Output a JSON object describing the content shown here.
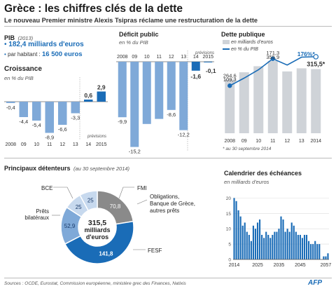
{
  "header": {
    "title": "Grèce : les chiffres clés de la dette",
    "subtitle": "Le nouveau Premier ministre Alexis Tsipras réclame une restructuration de la dette"
  },
  "pib": {
    "label": "PIB",
    "year": "(2013)",
    "total": "182,4 milliards d'euros",
    "per_capita_label": "par habitant :",
    "per_capita_value": "16 500 euros"
  },
  "croissance": {
    "title": "Croissance",
    "unit": "en % du PIB",
    "previsions": "prévisions"
  },
  "deficit": {
    "title": "Déficit public",
    "unit": "en % du PIB",
    "previsions": "prévisions"
  },
  "dette": {
    "title": "Dette publique",
    "legend_bar": "en milliards d'euros",
    "legend_line": "en % du PIB",
    "footnote": "* au 30 septembre 2014"
  },
  "detenteurs": {
    "title": "Principaux détenteurs",
    "date": "(au 30 septembre 2014)",
    "center_line1": "315,5",
    "center_line2": "milliards",
    "center_line3": "d'euros",
    "labels": {
      "bce": "BCE",
      "fmi": "FMI",
      "prets": [
        "Prêts",
        "bilatéraux"
      ],
      "oblig": [
        "Obligations,",
        "Banque de Grèce,",
        "autres prêts"
      ],
      "fesf": "FESF"
    }
  },
  "calendrier": {
    "title": "Calendrier des échéances",
    "unit": "en milliards d'euros"
  },
  "footer": {
    "source": "Sources : OCDE, Eurostat, Commission européenne, ministère grec des Finances, Natixis",
    "logo": "AFP"
  },
  "colors": {
    "dark_blue": "#1a6cb7",
    "light_blue": "#7fa9d8",
    "pale_blue": "#c7d9ee",
    "gray": "#9a9a9a",
    "light_gray": "#cfd3d8",
    "donut_gray": "#8a8a8a"
  },
  "chart_data": [
    {
      "id": "croissance",
      "type": "bar",
      "title": "Croissance",
      "ylabel": "en % du PIB",
      "categories": [
        "2008",
        "09",
        "10",
        "11",
        "12",
        "13",
        "14",
        "2015"
      ],
      "values": [
        -0.4,
        -4.4,
        -5.4,
        -8.9,
        -6.6,
        -3.3,
        0.6,
        2.9
      ],
      "value_labels": [
        "-0,4",
        "-4,4",
        "-5,4",
        "-8,9",
        "-6,6",
        "-3,3",
        "0,6",
        "2,9"
      ],
      "forecast_from": "14",
      "ylim": [
        -10,
        4
      ]
    },
    {
      "id": "deficit",
      "type": "bar",
      "title": "Déficit public",
      "ylabel": "en % du PIB",
      "categories": [
        "2008",
        "09",
        "10",
        "11",
        "12",
        "13",
        "14",
        "2015"
      ],
      "values": [
        -9.9,
        -15.2,
        -11.1,
        -10.2,
        -8.6,
        -12.2,
        -1.6,
        -0.1
      ],
      "value_labels": [
        "-9,9",
        "-15,2",
        "",
        "",
        "-8,6",
        "-12,2",
        "-1,6",
        "-0,1"
      ],
      "forecast_from": "14",
      "ylim": [
        -16,
        1
      ]
    },
    {
      "id": "dette",
      "type": "bar+line",
      "title": "Dette publique",
      "categories": [
        "2008",
        "09",
        "10",
        "11",
        "12",
        "13",
        "2014"
      ],
      "series": [
        {
          "name": "en milliards d'euros",
          "type": "bar",
          "values": [
            264.6,
            299.7,
            329.5,
            355.9,
            303.9,
            319.2,
            315.5
          ],
          "labels": [
            "264,6",
            "",
            "",
            "355,9",
            "",
            "",
            "315,5*"
          ]
        },
        {
          "name": "en % du PIB",
          "type": "line",
          "values": [
            109.3,
            126.8,
            146.0,
            171.3,
            156.9,
            175.0,
            176.0
          ],
          "labels": [
            "109,3",
            "",
            "",
            "171,3",
            "",
            "",
            "176%*"
          ]
        }
      ]
    },
    {
      "id": "detenteurs",
      "type": "pie",
      "title": "Principaux détenteurs",
      "total": 315.5,
      "slices": [
        {
          "name": "Obligations, Banque de Grèce, autres prêts",
          "value": 70.8,
          "label": "70,8"
        },
        {
          "name": "FESF",
          "value": 141.8,
          "label": "141,8"
        },
        {
          "name": "Prêts bilatéraux",
          "value": 52.9,
          "label": "52,9"
        },
        {
          "name": "BCE",
          "value": 25,
          "label": "25"
        },
        {
          "name": "FMI",
          "value": 25,
          "label": "25"
        }
      ]
    },
    {
      "id": "calendrier",
      "type": "bar",
      "title": "Calendrier des échéances",
      "ylabel": "en milliards d'euros",
      "x_start": 2014,
      "values": [
        20,
        19,
        16,
        14,
        11,
        12,
        9,
        8,
        6,
        11,
        10,
        12,
        13,
        8,
        7,
        9,
        8,
        7,
        8,
        9,
        9,
        10,
        14,
        13,
        9,
        10,
        9,
        12,
        11,
        9,
        8,
        8,
        7,
        8,
        8,
        6,
        5,
        5,
        6,
        5,
        5,
        0,
        1,
        1,
        2
      ],
      "xticks": [
        "2014",
        "2025",
        "2035",
        "2045",
        "2057"
      ],
      "yticks": [
        "0",
        "5",
        "10",
        "15",
        "20"
      ],
      "ylim": [
        0,
        21
      ]
    }
  ]
}
